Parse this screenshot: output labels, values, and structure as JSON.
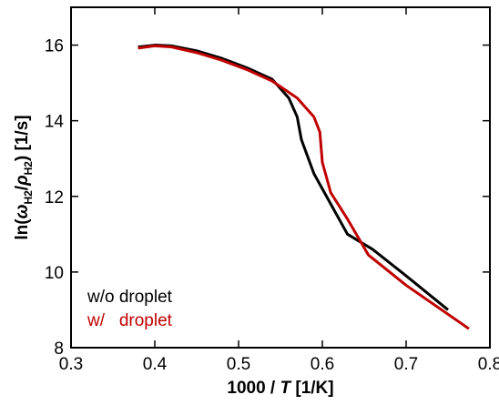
{
  "chart_data": {
    "type": "line",
    "xlabel_parts": [
      "1000 / ",
      "T",
      " [1/K]"
    ],
    "ylabel_parts": [
      "ln(",
      "ω",
      "H2",
      "/",
      "ρ",
      "H2",
      ") [1/s]"
    ],
    "xlim": [
      0.3,
      0.8
    ],
    "xticks": [
      0.3,
      0.4,
      0.5,
      0.6,
      0.7,
      0.8
    ],
    "ylim": [
      8,
      17
    ],
    "yticks": [
      8,
      10,
      12,
      14,
      16
    ],
    "legend": "lower left",
    "series": [
      {
        "name": "w/o droplet",
        "color": "#000000",
        "x": [
          0.38,
          0.4,
          0.42,
          0.45,
          0.48,
          0.51,
          0.54,
          0.56,
          0.57,
          0.575,
          0.59,
          0.61,
          0.63,
          0.66,
          0.7,
          0.75
        ],
        "values": [
          15.95,
          16.0,
          15.98,
          15.85,
          15.65,
          15.4,
          15.1,
          14.6,
          14.1,
          13.5,
          12.6,
          11.8,
          11.0,
          10.6,
          9.9,
          9.0
        ]
      },
      {
        "name": "w/   droplet",
        "color": "#c00000",
        "x": [
          0.38,
          0.4,
          0.42,
          0.45,
          0.48,
          0.51,
          0.54,
          0.57,
          0.59,
          0.597,
          0.6,
          0.61,
          0.63,
          0.655,
          0.7,
          0.775
        ],
        "values": [
          15.92,
          15.98,
          15.95,
          15.8,
          15.6,
          15.35,
          15.05,
          14.6,
          14.1,
          13.7,
          12.9,
          12.1,
          11.4,
          10.45,
          9.65,
          8.5
        ]
      }
    ]
  }
}
